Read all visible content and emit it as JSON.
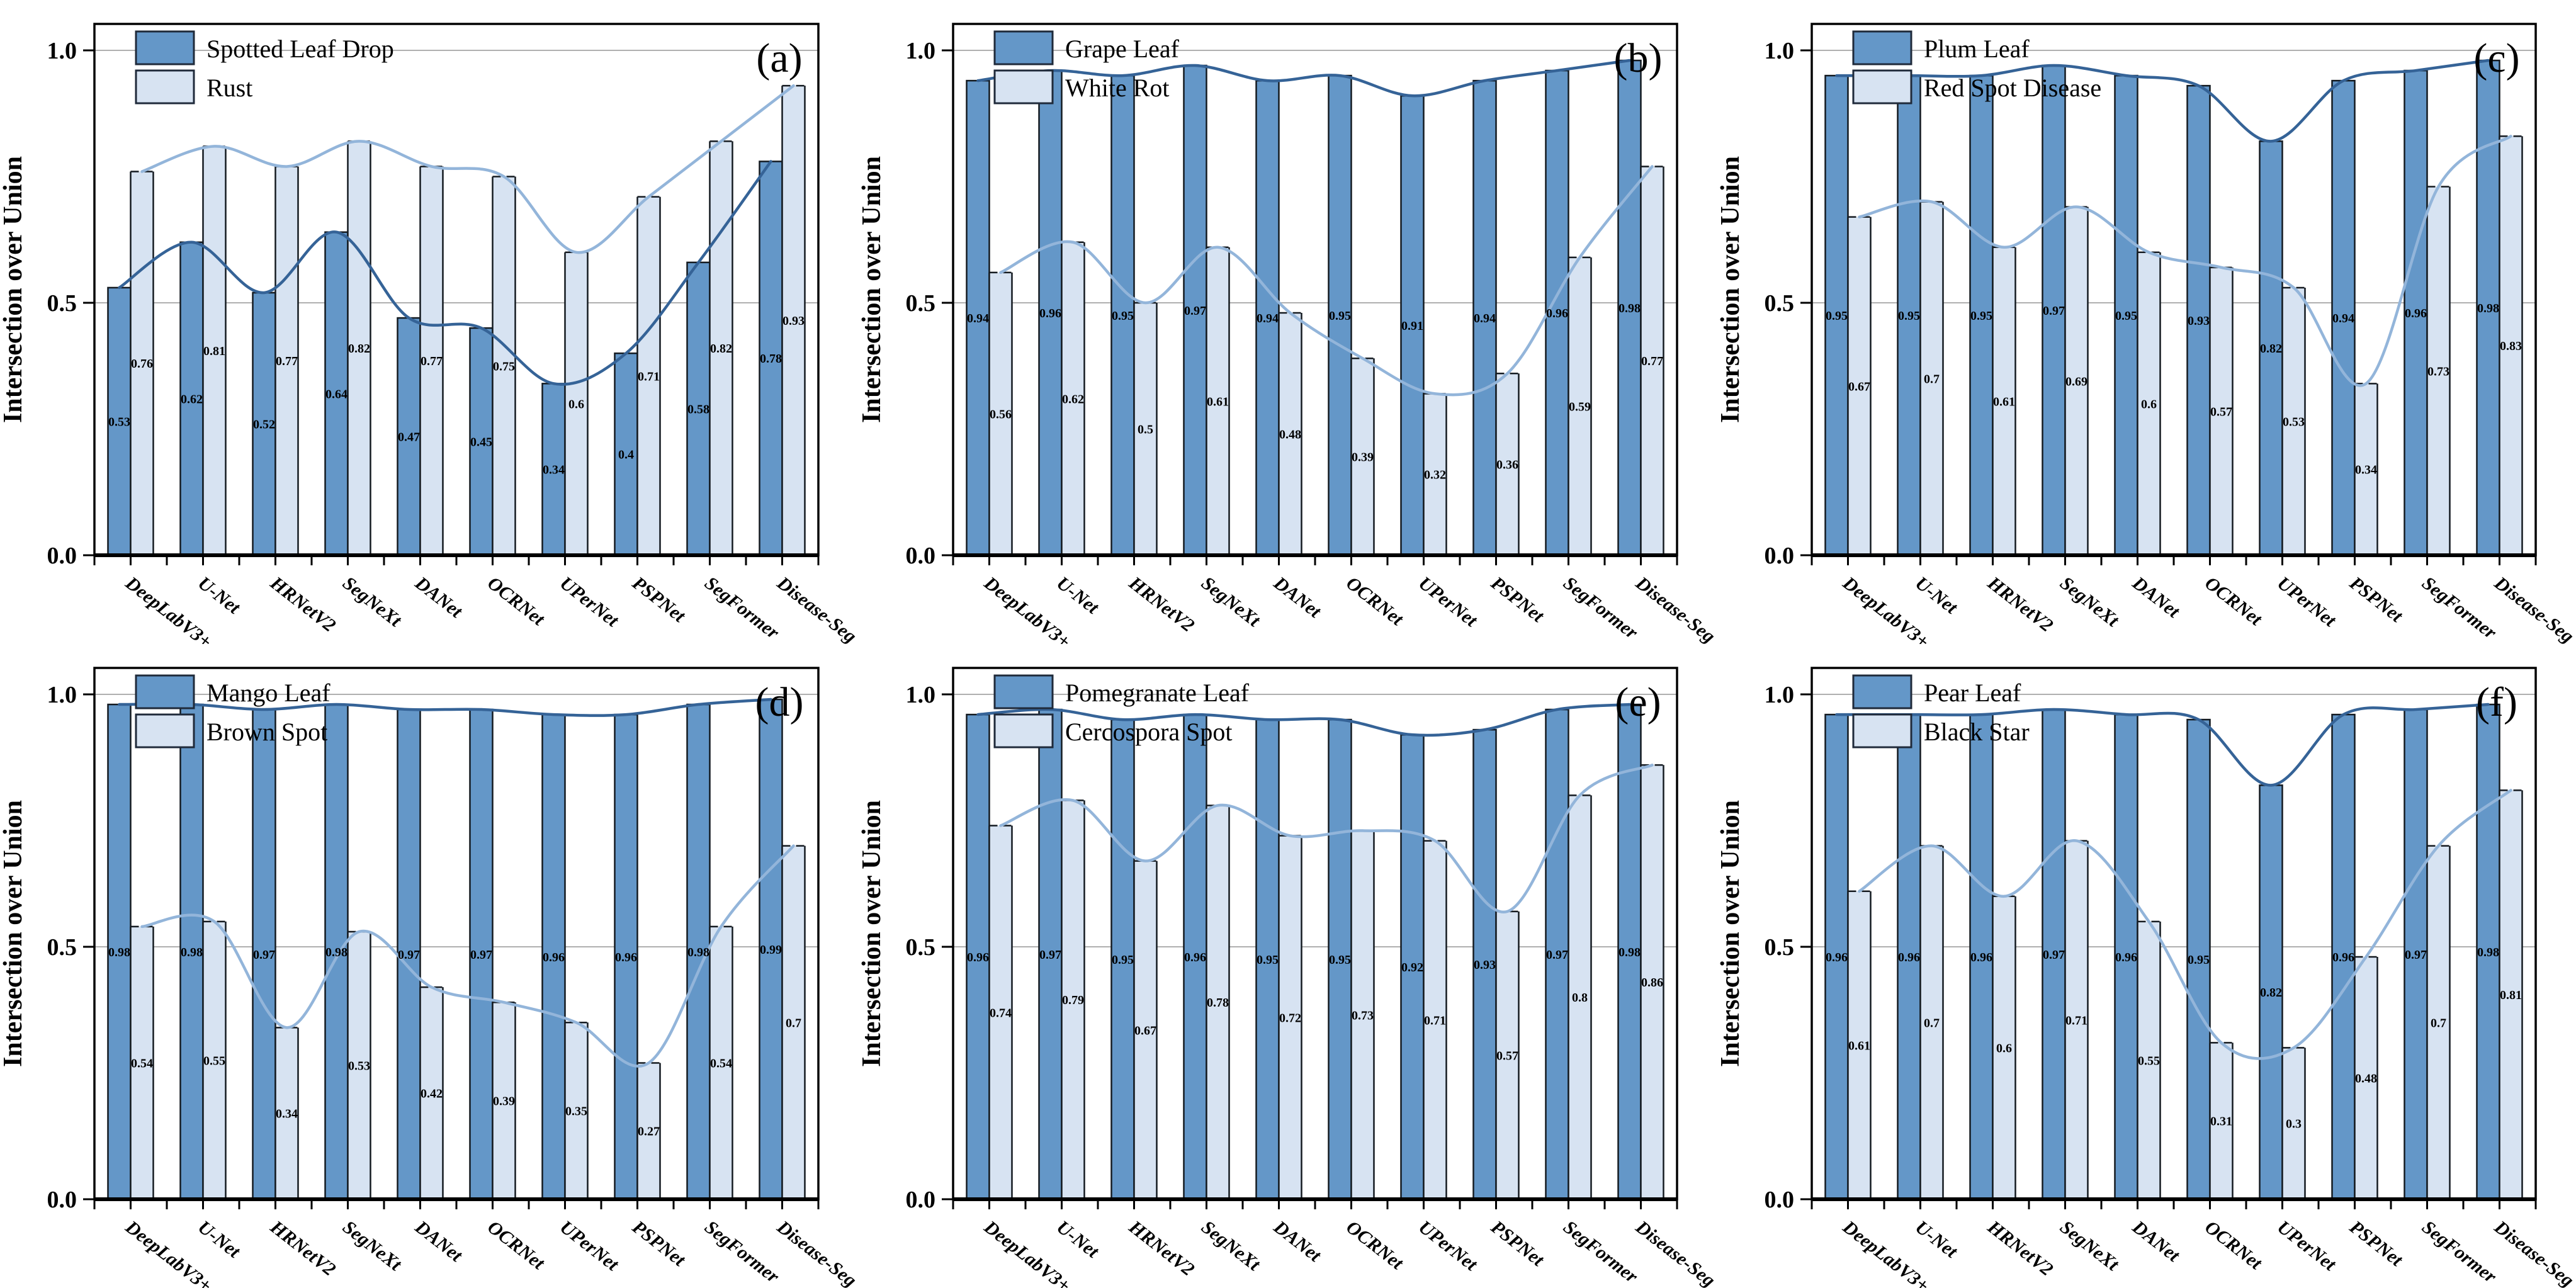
{
  "figure": {
    "ylabel": "Intersection over Union",
    "ytick_labels": [
      "0.0",
      "0.5",
      "1.0"
    ],
    "models": [
      "DeepLabV3+",
      "U-Net",
      "HRNetV2",
      "SegNeXt",
      "DANet",
      "OCRNet",
      "UPerNet",
      "PSPNet",
      "SegFormer",
      "Disease-Seg"
    ]
  },
  "colors": {
    "dark_bar": "#6497c8",
    "light_bar": "#d7e3f2",
    "bar_edge": "#141a20",
    "dark_line": "#356397",
    "light_line": "#93b5da",
    "grid": "#b0b0b0",
    "frame": "#000000"
  },
  "chart_data": [
    {
      "type": "bar",
      "panel": "(a)",
      "categories": [
        "DeepLabV3+",
        "U-Net",
        "HRNetV2",
        "SegNeXt",
        "DANet",
        "OCRNet",
        "UPerNet",
        "PSPNet",
        "SegFormer",
        "Disease-Seg"
      ],
      "series": [
        {
          "name": "Spotted Leaf Drop",
          "role": "dark",
          "values": [
            0.53,
            0.62,
            0.52,
            0.64,
            0.47,
            0.45,
            0.34,
            0.4,
            0.58,
            0.78
          ]
        },
        {
          "name": "Rust",
          "role": "light",
          "values": [
            0.76,
            0.81,
            0.77,
            0.82,
            0.77,
            0.75,
            0.6,
            0.71,
            0.82,
            0.93
          ]
        }
      ],
      "ylabel": "Intersection over Union",
      "ylim": [
        0,
        1.05
      ],
      "yticks": [
        0,
        0.5,
        1.0
      ],
      "grid_lines": [
        0.5,
        1.0
      ],
      "legend_position": "upper-left"
    },
    {
      "type": "bar",
      "panel": "(b)",
      "categories": [
        "DeepLabV3+",
        "U-Net",
        "HRNetV2",
        "SegNeXt",
        "DANet",
        "OCRNet",
        "UPerNet",
        "PSPNet",
        "SegFormer",
        "Disease-Seg"
      ],
      "series": [
        {
          "name": "Grape Leaf",
          "role": "dark",
          "values": [
            0.94,
            0.96,
            0.95,
            0.97,
            0.94,
            0.95,
            0.91,
            0.94,
            0.96,
            0.98
          ]
        },
        {
          "name": "White Rot",
          "role": "light",
          "values": [
            0.56,
            0.62,
            0.5,
            0.61,
            0.48,
            0.39,
            0.32,
            0.36,
            0.59,
            0.77
          ]
        }
      ],
      "ylabel": "Intersection over Union",
      "ylim": [
        0,
        1.05
      ],
      "yticks": [
        0,
        0.5,
        1.0
      ],
      "grid_lines": [
        0.5,
        1.0
      ],
      "legend_position": "upper-left"
    },
    {
      "type": "bar",
      "panel": "(c)",
      "categories": [
        "DeepLabV3+",
        "U-Net",
        "HRNetV2",
        "SegNeXt",
        "DANet",
        "OCRNet",
        "UPerNet",
        "PSPNet",
        "SegFormer",
        "Disease-Seg"
      ],
      "series": [
        {
          "name": "Plum Leaf",
          "role": "dark",
          "values": [
            0.95,
            0.95,
            0.95,
            0.97,
            0.95,
            0.93,
            0.82,
            0.94,
            0.96,
            0.98
          ]
        },
        {
          "name": "Red Spot Disease",
          "role": "light",
          "values": [
            0.67,
            0.7,
            0.61,
            0.69,
            0.6,
            0.57,
            0.53,
            0.34,
            0.73,
            0.83
          ]
        }
      ],
      "ylabel": "Intersection over Union",
      "ylim": [
        0,
        1.05
      ],
      "yticks": [
        0,
        0.5,
        1.0
      ],
      "grid_lines": [
        0.5,
        1.0
      ],
      "legend_position": "upper-left"
    },
    {
      "type": "bar",
      "panel": "(d)",
      "categories": [
        "DeepLabV3+",
        "U-Net",
        "HRNetV2",
        "SegNeXt",
        "DANet",
        "OCRNet",
        "UPerNet",
        "PSPNet",
        "SegFormer",
        "Disease-Seg"
      ],
      "series": [
        {
          "name": "Mango Leaf",
          "role": "dark",
          "values": [
            0.98,
            0.98,
            0.97,
            0.98,
            0.97,
            0.97,
            0.96,
            0.96,
            0.98,
            0.99
          ]
        },
        {
          "name": "Brown Spot",
          "role": "light",
          "values": [
            0.54,
            0.55,
            0.34,
            0.53,
            0.42,
            0.39,
            0.35,
            0.27,
            0.54,
            0.7
          ]
        }
      ],
      "ylabel": "Intersection over Union",
      "ylim": [
        0,
        1.05
      ],
      "yticks": [
        0,
        0.5,
        1.0
      ],
      "grid_lines": [
        0.5,
        1.0
      ],
      "legend_position": "upper-left"
    },
    {
      "type": "bar",
      "panel": "(e)",
      "categories": [
        "DeepLabV3+",
        "U-Net",
        "HRNetV2",
        "SegNeXt",
        "DANet",
        "OCRNet",
        "UPerNet",
        "PSPNet",
        "SegFormer",
        "Disease-Seg"
      ],
      "series": [
        {
          "name": "Pomegranate Leaf",
          "role": "dark",
          "values": [
            0.96,
            0.97,
            0.95,
            0.96,
            0.95,
            0.95,
            0.92,
            0.93,
            0.97,
            0.98
          ]
        },
        {
          "name": "Cercospora Spot",
          "role": "light",
          "values": [
            0.74,
            0.79,
            0.67,
            0.78,
            0.72,
            0.73,
            0.71,
            0.57,
            0.8,
            0.86
          ]
        }
      ],
      "ylabel": "Intersection over Union",
      "ylim": [
        0,
        1.05
      ],
      "yticks": [
        0,
        0.5,
        1.0
      ],
      "grid_lines": [
        0.5,
        1.0
      ],
      "legend_position": "upper-left"
    },
    {
      "type": "bar",
      "panel": "(f)",
      "categories": [
        "DeepLabV3+",
        "U-Net",
        "HRNetV2",
        "SegNeXt",
        "DANet",
        "OCRNet",
        "UPerNet",
        "PSPNet",
        "SegFormer",
        "Disease-Seg"
      ],
      "series": [
        {
          "name": "Pear Leaf",
          "role": "dark",
          "values": [
            0.96,
            0.96,
            0.96,
            0.97,
            0.96,
            0.95,
            0.82,
            0.96,
            0.97,
            0.98
          ]
        },
        {
          "name": "Black Star",
          "role": "light",
          "values": [
            0.61,
            0.7,
            0.6,
            0.71,
            0.55,
            0.31,
            0.3,
            0.48,
            0.7,
            0.81
          ]
        }
      ],
      "ylabel": "Intersection over Union",
      "ylim": [
        0,
        1.05
      ],
      "yticks": [
        0,
        0.5,
        1.0
      ],
      "grid_lines": [
        0.5,
        1.0
      ],
      "legend_position": "upper-left"
    }
  ]
}
